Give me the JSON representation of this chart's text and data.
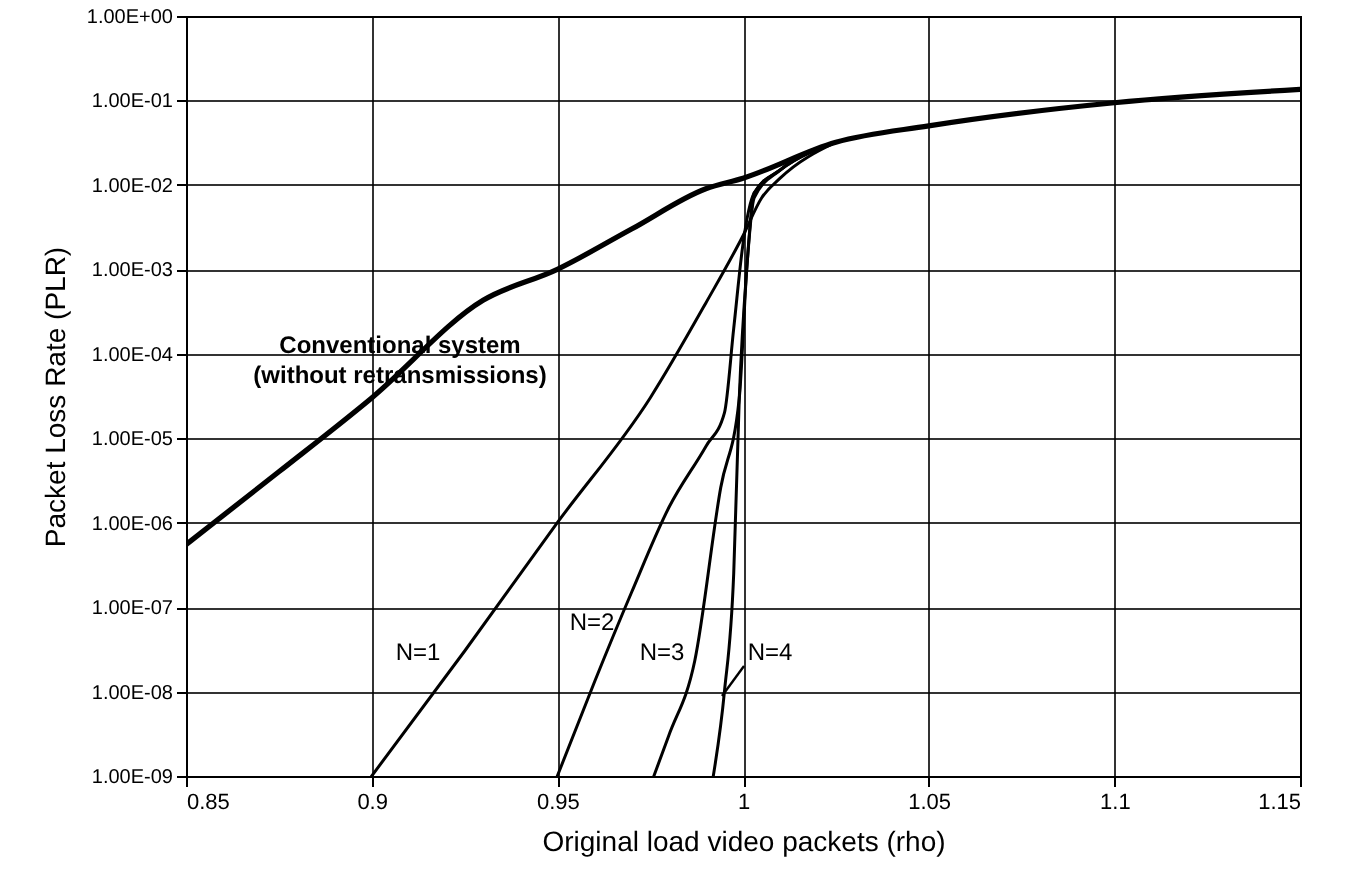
{
  "chart_data": {
    "type": "line",
    "xlabel": "Original load video packets (rho)",
    "ylabel": "Packet Loss Rate (PLR)",
    "log": "y",
    "grid": true,
    "marker": "none",
    "line_style": "solid",
    "xlim": [
      0.85,
      1.15
    ],
    "xticks": [
      0.85,
      0.9,
      0.95,
      1,
      1.05,
      1.1,
      1.15
    ],
    "ylim": [
      1e-09,
      1
    ],
    "yticks": [
      {
        "value": 1e-09,
        "label": "1.00E-09"
      },
      {
        "value": 1e-08,
        "label": "1.00E-08"
      },
      {
        "value": 1e-07,
        "label": "1.00E-07"
      },
      {
        "value": 1e-06,
        "label": "1.00E-06"
      },
      {
        "value": 1e-05,
        "label": "1.00E-05"
      },
      {
        "value": 0.0001,
        "label": "1.00E-04"
      },
      {
        "value": 0.001,
        "label": "1.00E-03"
      },
      {
        "value": 0.01,
        "label": "1.00E-02"
      },
      {
        "value": 0.1,
        "label": "1.00E-01"
      },
      {
        "value": 1,
        "label": "1.00E+00"
      }
    ],
    "series": [
      {
        "name": "Conventional system\n(without retransmissions)",
        "color": "#000000",
        "x": [
          0.85,
          0.875,
          0.9,
          0.93,
          0.95,
          0.97,
          0.99,
          1.0,
          1.025,
          1.05,
          1.1,
          1.15
        ],
        "values": [
          5.5e-07,
          4e-06,
          3e-05,
          0.00043,
          0.001,
          0.003,
          0.009,
          0.012,
          0.032,
          0.05,
          0.094,
          0.135
        ]
      },
      {
        "name": "N=1",
        "color": "#000000",
        "x": [
          0.9,
          0.925,
          0.95,
          0.975,
          0.99,
          1.0,
          1.005,
          1.01,
          1.025
        ],
        "values": [
          1e-09,
          3e-08,
          1e-06,
          3e-05,
          0.0004,
          0.0025,
          0.007,
          0.012,
          0.032
        ]
      },
      {
        "name": "N=2",
        "color": "#000000",
        "x": [
          0.95,
          0.96,
          0.97,
          0.98,
          0.99,
          0.995,
          0.9975,
          1.0,
          1.003,
          1.01,
          1.025
        ],
        "values": [
          1e-09,
          1.3e-08,
          1.5e-07,
          1.5e-06,
          8e-06,
          2e-05,
          0.0002,
          0.002,
          0.008,
          0.015,
          0.032
        ]
      },
      {
        "name": "N=3",
        "color": "#000000",
        "x": [
          0.976,
          0.98,
          0.987,
          0.994,
          0.999,
          1.001,
          1.003,
          1.01,
          1.025
        ],
        "values": [
          1e-09,
          3e-09,
          2.3e-08,
          2.6e-06,
          3e-05,
          0.001,
          0.008,
          0.015,
          0.032
        ]
      },
      {
        "name": "N=4",
        "color": "#000000",
        "x": [
          0.992,
          0.995,
          0.9975,
          0.999,
          1.001,
          1.003,
          1.01,
          1.025
        ],
        "values": [
          1e-09,
          1e-08,
          2.5e-07,
          3e-05,
          0.001,
          0.007,
          0.015,
          0.032
        ]
      }
    ]
  }
}
